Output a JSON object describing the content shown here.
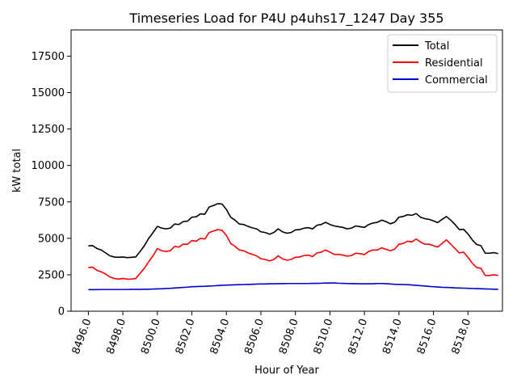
{
  "chart_data": {
    "type": "line",
    "title": "Timeseries Load for P4U p4uhs17_1247  Day 355",
    "xlabel": "Hour of Year",
    "ylabel": "kW total",
    "xlim": [
      8495.0,
      8520.0
    ],
    "ylim": [
      0,
      19300
    ],
    "xticks": [
      8496,
      8498,
      8500,
      8502,
      8504,
      8506,
      8508,
      8510,
      8512,
      8514,
      8516,
      8518
    ],
    "xtick_labels": [
      "8496.0",
      "8498.0",
      "8500.0",
      "8502.0",
      "8504.0",
      "8506.0",
      "8508.0",
      "8510.0",
      "8512.0",
      "8514.0",
      "8516.0",
      "8518.0"
    ],
    "yticks": [
      0,
      2500,
      5000,
      7500,
      10000,
      12500,
      15000,
      17500
    ],
    "ytick_labels": [
      "0",
      "2500",
      "5000",
      "7500",
      "10000",
      "12500",
      "15000",
      "17500"
    ],
    "legend_position": "top-right",
    "x_start": 8496.0,
    "x_step": 0.25,
    "series": [
      {
        "name": "Total",
        "color": "#000000",
        "values": [
          4480,
          4500,
          4300,
          4200,
          4000,
          3800,
          3720,
          3700,
          3720,
          3680,
          3700,
          3720,
          4100,
          4500,
          5000,
          5400,
          5820,
          5700,
          5650,
          5700,
          5980,
          5950,
          6150,
          6180,
          6450,
          6480,
          6680,
          6650,
          7150,
          7250,
          7380,
          7350,
          6980,
          6450,
          6250,
          5980,
          5950,
          5820,
          5720,
          5650,
          5450,
          5400,
          5280,
          5400,
          5650,
          5450,
          5350,
          5400,
          5580,
          5600,
          5700,
          5730,
          5650,
          5900,
          5950,
          6100,
          5950,
          5850,
          5800,
          5750,
          5650,
          5700,
          5850,
          5800,
          5750,
          5950,
          6050,
          6100,
          6250,
          6150,
          6000,
          6100,
          6450,
          6500,
          6620,
          6580,
          6700,
          6450,
          6350,
          6300,
          6200,
          6080,
          6300,
          6500,
          6250,
          5950,
          5600,
          5620,
          5300,
          4900,
          4580,
          4500,
          3980,
          3980,
          4020,
          3950
        ]
      },
      {
        "name": "Residential",
        "color": "#ff0000",
        "values": [
          3000,
          3020,
          2800,
          2700,
          2550,
          2350,
          2250,
          2200,
          2250,
          2200,
          2200,
          2250,
          2600,
          2950,
          3400,
          3800,
          4300,
          4150,
          4100,
          4150,
          4450,
          4400,
          4600,
          4600,
          4850,
          4800,
          5000,
          4950,
          5400,
          5500,
          5600,
          5550,
          5200,
          4650,
          4450,
          4200,
          4150,
          4000,
          3900,
          3800,
          3600,
          3550,
          3450,
          3550,
          3800,
          3600,
          3500,
          3550,
          3700,
          3720,
          3820,
          3850,
          3750,
          4000,
          4050,
          4200,
          4050,
          3900,
          3900,
          3850,
          3780,
          3820,
          3980,
          3950,
          3880,
          4100,
          4200,
          4200,
          4350,
          4250,
          4150,
          4250,
          4600,
          4650,
          4800,
          4750,
          4950,
          4750,
          4600,
          4600,
          4500,
          4400,
          4650,
          4900,
          4600,
          4300,
          4000,
          4050,
          3700,
          3300,
          3000,
          2950,
          2450,
          2450,
          2500,
          2450
        ]
      },
      {
        "name": "Commercial",
        "color": "#0000cc",
        "values": [
          1480,
          1480,
          1480,
          1490,
          1490,
          1490,
          1490,
          1490,
          1490,
          1490,
          1500,
          1500,
          1500,
          1510,
          1510,
          1520,
          1530,
          1540,
          1560,
          1570,
          1590,
          1610,
          1630,
          1650,
          1680,
          1690,
          1700,
          1710,
          1730,
          1740,
          1760,
          1780,
          1790,
          1800,
          1810,
          1820,
          1830,
          1840,
          1850,
          1860,
          1870,
          1870,
          1880,
          1880,
          1890,
          1890,
          1900,
          1900,
          1900,
          1900,
          1900,
          1900,
          1910,
          1910,
          1920,
          1930,
          1940,
          1940,
          1920,
          1910,
          1900,
          1890,
          1890,
          1880,
          1880,
          1880,
          1880,
          1900,
          1900,
          1890,
          1870,
          1850,
          1840,
          1830,
          1820,
          1800,
          1780,
          1750,
          1730,
          1700,
          1680,
          1660,
          1640,
          1630,
          1620,
          1600,
          1590,
          1580,
          1570,
          1560,
          1550,
          1540,
          1530,
          1520,
          1510,
          1500
        ]
      }
    ]
  }
}
